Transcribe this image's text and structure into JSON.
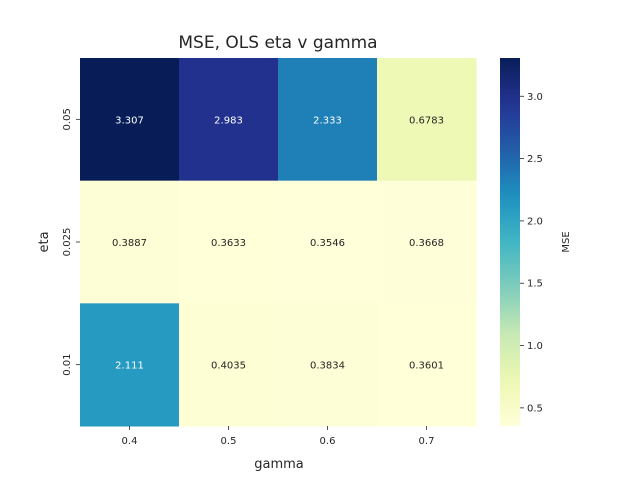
{
  "chart_data": {
    "type": "heatmap",
    "title": "MSE, OLS eta v gamma",
    "xlabel": "gamma",
    "ylabel": "eta",
    "x_categories": [
      "0.4",
      "0.5",
      "0.6",
      "0.7"
    ],
    "y_categories": [
      "0.05",
      "0.025",
      "0.01"
    ],
    "values": [
      [
        3.307,
        2.983,
        2.333,
        0.6783
      ],
      [
        0.3887,
        0.3633,
        0.3546,
        0.3668
      ],
      [
        2.111,
        0.4035,
        0.3834,
        0.3601
      ]
    ],
    "value_labels": [
      [
        "3.307",
        "2.983",
        "2.333",
        "0.6783"
      ],
      [
        "0.3887",
        "0.3633",
        "0.3546",
        "0.3668"
      ],
      [
        "2.111",
        "0.4035",
        "0.3834",
        "0.3601"
      ]
    ],
    "colormap": "YlGnBu",
    "colorbar": {
      "label": "MSE",
      "range": [
        0.3546,
        3.307
      ],
      "ticks": [
        0.5,
        1.0,
        1.5,
        2.0,
        2.5,
        3.0
      ],
      "tick_labels": [
        "0.5",
        "1.0",
        "1.5",
        "2.0",
        "2.5",
        "3.0"
      ]
    },
    "grid": false
  }
}
